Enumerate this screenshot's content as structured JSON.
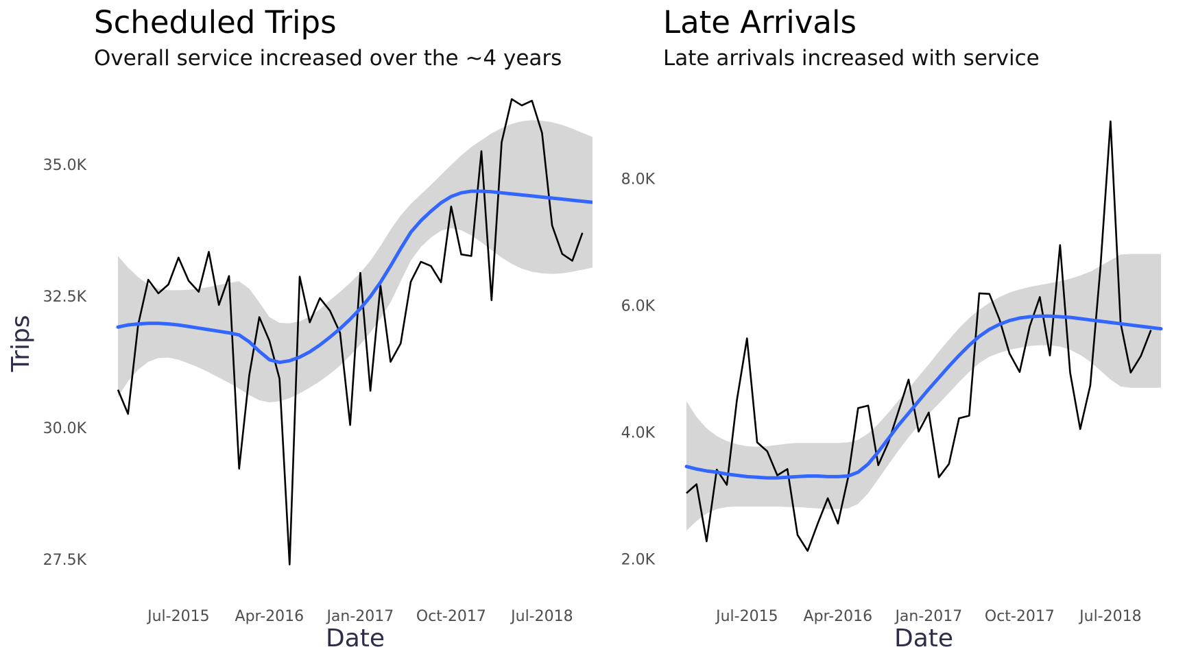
{
  "chart_data": [
    {
      "type": "line",
      "title": "Scheduled Trips",
      "subtitle": "Overall service increased over the ~4 years",
      "xlabel": "Date",
      "ylabel": "Trips",
      "xlim": [
        "2015-01",
        "2018-12"
      ],
      "ylim": [
        26900,
        36300
      ],
      "x_ticks": [
        {
          "x": "2015-07",
          "label": "Jul-2015"
        },
        {
          "x": "2016-04",
          "label": "Apr-2016"
        },
        {
          "x": "2017-01",
          "label": "Jan-2017"
        },
        {
          "x": "2017-10",
          "label": "Oct-2017"
        },
        {
          "x": "2018-07",
          "label": "Jul-2018"
        }
      ],
      "y_ticks": [
        {
          "y": 27500,
          "label": "27.5K"
        },
        {
          "y": 30000,
          "label": "30.0K"
        },
        {
          "y": 32500,
          "label": "32.5K"
        },
        {
          "y": 35000,
          "label": "35.0K"
        }
      ],
      "grid": false,
      "colors": {
        "line": "#000000",
        "smooth": "#3366ff",
        "ribbon": "#d6d6d6"
      },
      "series": [
        {
          "x": [
            "2015-01",
            "2015-02",
            "2015-03",
            "2015-04",
            "2015-05",
            "2015-06",
            "2015-07",
            "2015-08",
            "2015-09",
            "2015-10",
            "2015-11",
            "2015-12",
            "2016-01",
            "2016-02",
            "2016-03",
            "2016-04",
            "2016-05",
            "2016-06",
            "2016-07",
            "2016-08",
            "2016-09",
            "2016-10",
            "2016-11",
            "2016-12",
            "2017-01",
            "2017-02",
            "2017-03",
            "2017-04",
            "2017-05",
            "2017-06",
            "2017-07",
            "2017-08",
            "2017-09",
            "2017-10",
            "2017-11",
            "2017-12",
            "2018-01",
            "2018-02",
            "2018-03",
            "2018-04",
            "2018-05",
            "2018-06",
            "2018-07",
            "2018-08",
            "2018-09",
            "2018-10",
            "2018-11",
            "2018-12"
          ],
          "y": [
            30720,
            30260,
            31950,
            32810,
            32550,
            32720,
            33230,
            32790,
            32580,
            33340,
            32330,
            32880,
            29220,
            30990,
            32100,
            31650,
            30930,
            27400,
            32870,
            32000,
            32460,
            32220,
            31800,
            30050,
            32940,
            30700,
            32700,
            31250,
            31600,
            32770,
            33150,
            33070,
            32760,
            34200,
            33290,
            33260,
            35250,
            32420,
            35420,
            36240,
            36120,
            36210,
            35600,
            33840,
            33300,
            33170,
            33700,
            null
          ],
          "smooth": [
            31910,
            31950,
            31970,
            31980,
            31980,
            31970,
            31950,
            31920,
            31890,
            31860,
            31830,
            31800,
            31760,
            31630,
            31450,
            31290,
            31240,
            31270,
            31340,
            31440,
            31570,
            31720,
            31880,
            32060,
            32260,
            32490,
            32760,
            33070,
            33400,
            33710,
            33930,
            34110,
            34270,
            34390,
            34460,
            34490,
            34490,
            34480,
            34460,
            34440,
            34420,
            34400,
            34380,
            34360,
            34340,
            34320,
            34300,
            34280
          ],
          "ribbon_low": [
            30580,
            30880,
            31100,
            31250,
            31320,
            31330,
            31290,
            31220,
            31140,
            31050,
            30950,
            30850,
            30740,
            30620,
            30520,
            30480,
            30500,
            30560,
            30650,
            30760,
            30880,
            31020,
            31180,
            31370,
            31580,
            31810,
            32070,
            32380,
            32780,
            33170,
            33430,
            33610,
            33740,
            33790,
            33750,
            33650,
            33520,
            33370,
            33230,
            33110,
            33020,
            32960,
            32930,
            32920,
            32930,
            32960,
            33000,
            33040
          ],
          "ribbon_high": [
            33260,
            33040,
            32860,
            32720,
            32640,
            32610,
            32610,
            32620,
            32640,
            32670,
            32710,
            32750,
            32780,
            32640,
            32380,
            32100,
            31990,
            31980,
            32020,
            32110,
            32250,
            32420,
            32580,
            32750,
            32940,
            33170,
            33450,
            33760,
            34030,
            34250,
            34430,
            34610,
            34800,
            34990,
            35170,
            35330,
            35460,
            35590,
            35690,
            35770,
            35820,
            35840,
            35830,
            35800,
            35750,
            35680,
            35600,
            35520
          ]
        }
      ]
    },
    {
      "type": "line",
      "title": "Late Arrivals",
      "subtitle": "Late arrivals increased with service",
      "xlabel": "Date",
      "ylabel": "",
      "xlim": [
        "2015-01",
        "2018-12"
      ],
      "ylim": [
        1500,
        9300
      ],
      "x_ticks": [
        {
          "x": "2015-07",
          "label": "Jul-2015"
        },
        {
          "x": "2016-04",
          "label": "Apr-2016"
        },
        {
          "x": "2017-01",
          "label": "Jan-2017"
        },
        {
          "x": "2017-10",
          "label": "Oct-2017"
        },
        {
          "x": "2018-07",
          "label": "Jul-2018"
        }
      ],
      "y_ticks": [
        {
          "y": 2000,
          "label": "2.0K"
        },
        {
          "y": 4000,
          "label": "4.0K"
        },
        {
          "y": 6000,
          "label": "6.0K"
        },
        {
          "y": 8000,
          "label": "8.0K"
        }
      ],
      "grid": false,
      "colors": {
        "line": "#000000",
        "smooth": "#3366ff",
        "ribbon": "#d6d6d6"
      },
      "series": [
        {
          "x": [
            "2015-01",
            "2015-02",
            "2015-03",
            "2015-04",
            "2015-05",
            "2015-06",
            "2015-07",
            "2015-08",
            "2015-09",
            "2015-10",
            "2015-11",
            "2015-12",
            "2016-01",
            "2016-02",
            "2016-03",
            "2016-04",
            "2016-05",
            "2016-06",
            "2016-07",
            "2016-08",
            "2016-09",
            "2016-10",
            "2016-11",
            "2016-12",
            "2017-01",
            "2017-02",
            "2017-03",
            "2017-04",
            "2017-05",
            "2017-06",
            "2017-07",
            "2017-08",
            "2017-09",
            "2017-10",
            "2017-11",
            "2017-12",
            "2018-01",
            "2018-02",
            "2018-03",
            "2018-04",
            "2018-05",
            "2018-06",
            "2018-07",
            "2018-08",
            "2018-09",
            "2018-10",
            "2018-11",
            "2018-12"
          ],
          "y": [
            3040,
            3180,
            2280,
            3410,
            3170,
            4510,
            5480,
            3840,
            3700,
            3320,
            3420,
            2380,
            2130,
            2560,
            2960,
            2560,
            3280,
            4380,
            4420,
            3480,
            3840,
            4330,
            4830,
            4010,
            4310,
            3290,
            3500,
            4220,
            4260,
            6190,
            6180,
            5780,
            5240,
            4950,
            5670,
            6130,
            5210,
            6950,
            4940,
            4050,
            4740,
            6600,
            8900,
            5720,
            4940,
            5200,
            5610,
            null
          ],
          "smooth": [
            3460,
            3420,
            3390,
            3370,
            3340,
            3320,
            3300,
            3290,
            3280,
            3280,
            3290,
            3300,
            3310,
            3310,
            3300,
            3300,
            3310,
            3370,
            3500,
            3690,
            3900,
            4110,
            4300,
            4490,
            4680,
            4860,
            5040,
            5210,
            5370,
            5510,
            5620,
            5700,
            5760,
            5800,
            5820,
            5830,
            5830,
            5820,
            5810,
            5790,
            5770,
            5750,
            5730,
            5710,
            5690,
            5670,
            5650,
            5630
          ],
          "ribbon_low": [
            2450,
            2600,
            2720,
            2790,
            2820,
            2830,
            2830,
            2830,
            2830,
            2830,
            2820,
            2820,
            2810,
            2800,
            2790,
            2790,
            2800,
            2870,
            3040,
            3260,
            3490,
            3710,
            3920,
            4110,
            4290,
            4450,
            4620,
            4790,
            4950,
            5090,
            5190,
            5250,
            5300,
            5330,
            5360,
            5370,
            5370,
            5350,
            5300,
            5220,
            5110,
            4970,
            4830,
            4720,
            4700,
            4700,
            4700,
            4700
          ],
          "ribbon_high": [
            4490,
            4240,
            4060,
            3940,
            3860,
            3810,
            3780,
            3770,
            3780,
            3800,
            3820,
            3830,
            3830,
            3830,
            3830,
            3830,
            3840,
            3880,
            3980,
            4130,
            4310,
            4500,
            4690,
            4880,
            5070,
            5270,
            5460,
            5640,
            5800,
            5930,
            6040,
            6130,
            6200,
            6250,
            6290,
            6320,
            6350,
            6380,
            6420,
            6470,
            6530,
            6620,
            6710,
            6800,
            6810,
            6810,
            6810,
            6810
          ]
        }
      ]
    }
  ]
}
